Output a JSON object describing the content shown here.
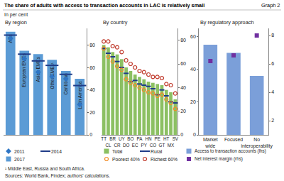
{
  "title": "The share of adults with access to transaction accounts in LAC is relatively small",
  "graph_label": "Graph 2",
  "subtitle": "In per cent",
  "notes": [
    "¹ Middle East, Russia and South Africa.",
    "Sources: World Bank, Findex; authors' calculations."
  ],
  "chart_data": [
    {
      "type": "bar",
      "title": "By region",
      "categories": [
        "AEs",
        "European EMEs",
        "Asian EMEs",
        "Other EMEs¹",
        "Caribbean",
        "Latin America"
      ],
      "series": [
        {
          "name": "2011",
          "type": "scatter",
          "marker": "diamond",
          "color": "#2e75c4",
          "values": [
            86,
            68,
            56,
            52,
            50,
            27
          ]
        },
        {
          "name": "2014",
          "type": "scatter",
          "marker": "line-ew",
          "color": "#1f3c88",
          "values": [
            89,
            72,
            66,
            62,
            54,
            44
          ]
        },
        {
          "name": "2017",
          "type": "bar",
          "color": "#5b9bd5",
          "values": [
            92,
            75,
            72,
            67,
            57,
            50
          ]
        }
      ],
      "ylim": [
        0,
        95
      ],
      "yticks": [
        0,
        20,
        40,
        60,
        80
      ],
      "grid": false,
      "tick_labels": "y"
    },
    {
      "type": "bar",
      "title": "By country",
      "categories": [
        "TT",
        "CL",
        "BR",
        "CR",
        "UY",
        "DO",
        "BO",
        "EC",
        "PA",
        "PY",
        "HN",
        "CO",
        "PE",
        "GT",
        "HT",
        "MX",
        "SV"
      ],
      "series": [
        {
          "name": "Total",
          "type": "bar",
          "color": "#8cc063",
          "values": [
            76,
            74,
            70,
            68,
            64,
            57,
            54,
            51,
            49,
            47,
            45,
            44,
            43,
            42,
            38,
            36,
            30
          ]
        },
        {
          "name": "Rural",
          "type": "scatter",
          "marker": "line-ew",
          "color": "#1f3c88",
          "values": [
            73,
            69,
            66,
            62,
            57,
            52,
            45,
            46,
            43,
            42,
            41,
            39,
            34,
            38,
            33,
            28,
            27
          ]
        },
        {
          "name": "Poorest 40%",
          "type": "scatter",
          "marker": "circle-open",
          "color": "#f28c28",
          "values": [
            73,
            66,
            62,
            58,
            55,
            47,
            44,
            42,
            40,
            38,
            36,
            35,
            33,
            34,
            30,
            27,
            22
          ]
        },
        {
          "name": "Richest 60%",
          "type": "scatter",
          "marker": "circle-open",
          "color": "#c0392b",
          "values": [
            79,
            79,
            75,
            74,
            70,
            63,
            60,
            57,
            54,
            53,
            51,
            49,
            49,
            48,
            43,
            42,
            35
          ]
        }
      ],
      "ylim": [
        0,
        90
      ],
      "yticks": [
        0,
        20,
        40,
        60,
        80
      ],
      "grid": false
    },
    {
      "type": "bar",
      "title": "By regulatory approach",
      "categories": [
        "Market wide",
        "Focused",
        "No interoperability"
      ],
      "series": [
        {
          "name": "Access to transaction accounts (lhs)",
          "type": "bar",
          "color": "#7b9fd9",
          "values": [
            55,
            50,
            36
          ]
        },
        {
          "name": "Net interest margin (rhs)",
          "type": "scatter",
          "marker": "square",
          "color": "#7030a0",
          "axis": "y2",
          "values": [
            6.2,
            6.6,
            8.0
          ]
        }
      ],
      "ylim": [
        0,
        65
      ],
      "yticks": [
        0,
        20,
        40,
        60
      ],
      "y2lim": [
        1,
        8.5
      ],
      "y2ticks": [
        2,
        4,
        6,
        8
      ],
      "grid": false
    }
  ]
}
